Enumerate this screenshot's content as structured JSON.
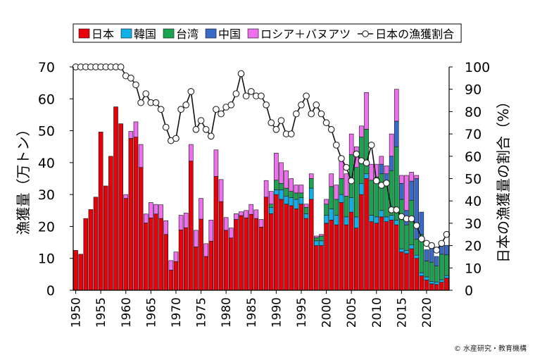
{
  "chart_data": {
    "type": "bar",
    "stacked": true,
    "x_label": "",
    "y_label_left": "漁獲量（万トン）",
    "y_label_right": "日本の漁獲量の割合（%）",
    "ylim_left": [
      0,
      70
    ],
    "ylim_right": [
      0,
      100
    ],
    "y_ticks_left": [
      0,
      10,
      20,
      30,
      40,
      50,
      60,
      70
    ],
    "y_ticks_right": [
      0,
      10,
      20,
      30,
      40,
      50,
      60,
      70,
      80,
      90,
      100
    ],
    "x_ticks": [
      1950,
      1955,
      1960,
      1965,
      1970,
      1975,
      1980,
      1985,
      1990,
      1995,
      2000,
      2005,
      2010,
      2015,
      2020
    ],
    "legend_position": "top",
    "grid": false,
    "years": [
      1950,
      1951,
      1952,
      1953,
      1954,
      1955,
      1956,
      1957,
      1958,
      1959,
      1960,
      1961,
      1962,
      1963,
      1964,
      1965,
      1966,
      1967,
      1968,
      1969,
      1970,
      1971,
      1972,
      1973,
      1974,
      1975,
      1976,
      1977,
      1978,
      1979,
      1980,
      1981,
      1982,
      1983,
      1984,
      1985,
      1986,
      1987,
      1988,
      1989,
      1990,
      1991,
      1992,
      1993,
      1994,
      1995,
      1996,
      1997,
      1998,
      1999,
      2000,
      2001,
      2002,
      2003,
      2004,
      2005,
      2006,
      2007,
      2008,
      2009,
      2010,
      2011,
      2012,
      2013,
      2014,
      2015,
      2016,
      2017,
      2018,
      2019,
      2020,
      2021,
      2022,
      2023,
      2024
    ],
    "series": [
      {
        "name": "日本",
        "color": "#e8000b",
        "role": "bar",
        "values": [
          12.5,
          11.3,
          22.5,
          25.3,
          29.2,
          49.6,
          32.7,
          42.0,
          57.5,
          52.2,
          28.8,
          47.6,
          48.0,
          38.5,
          21.1,
          22.7,
          23.9,
          22.5,
          17.5,
          6.3,
          9.0,
          18.9,
          19.6,
          40.5,
          13.6,
          22.3,
          10.6,
          15.4,
          35.7,
          27.8,
          18.8,
          16.4,
          22.2,
          23.4,
          22.7,
          23.8,
          22.5,
          19.8,
          29.2,
          24.0,
          30.0,
          28.5,
          27.0,
          26.5,
          25.5,
          27.0,
          22.5,
          28.5,
          14.0,
          14.0,
          21.0,
          22.0,
          20.5,
          27.5,
          20.5,
          24.5,
          19.5,
          30.0,
          35.0,
          21.5,
          21.0,
          23.0,
          21.5,
          22.0,
          20.5,
          12.0,
          11.5,
          13.0,
          10.0,
          4.5,
          3.2,
          2.0,
          1.8,
          2.5,
          3.8
        ]
      },
      {
        "name": "韓国",
        "color": "#10b0e8",
        "role": "bar",
        "values": [
          0,
          0,
          0,
          0,
          0,
          0,
          0,
          0,
          0,
          0,
          0,
          0,
          0,
          0,
          0,
          0,
          0,
          0,
          0,
          0,
          0,
          0,
          0,
          0,
          0,
          0,
          0,
          0,
          0,
          0,
          0,
          0,
          0,
          0,
          0,
          0,
          0,
          0,
          0,
          2.0,
          1.5,
          3.0,
          2.5,
          2.5,
          3.0,
          2.0,
          1.5,
          3.5,
          1.5,
          1.5,
          2.5,
          3.5,
          3.0,
          2.5,
          2.5,
          4.5,
          3.5,
          3.5,
          1.5,
          2.0,
          2.0,
          2.0,
          1.5,
          1.5,
          1.5,
          1.0,
          1.0,
          1.2,
          1.0,
          1.0,
          1.0,
          0.8,
          0.8,
          0.8,
          0.8
        ]
      },
      {
        "name": "台湾",
        "color": "#1aa350",
        "role": "bar",
        "values": [
          0,
          0,
          0,
          0,
          0,
          0,
          0,
          0,
          0,
          0,
          0,
          0,
          0,
          0,
          0,
          0,
          0,
          0,
          0,
          0,
          0,
          0,
          0,
          0,
          0,
          0,
          0,
          0,
          0,
          0,
          0,
          0,
          0,
          0,
          0,
          0,
          0,
          0,
          0,
          1.0,
          3.0,
          2.0,
          2.5,
          2.0,
          2.0,
          1.5,
          2.0,
          3.0,
          1.0,
          1.5,
          3.5,
          7.0,
          5.0,
          5.0,
          6.5,
          13.5,
          15.5,
          14.5,
          14.0,
          11.0,
          12.5,
          11.5,
          10.0,
          14.0,
          23.0,
          15.5,
          8.0,
          14.0,
          5.0,
          12.0,
          5.0,
          6.0,
          5.0,
          8.0,
          6.5
        ]
      },
      {
        "name": "中国",
        "color": "#3a6ac8",
        "role": "bar",
        "values": [
          0,
          0,
          0,
          0,
          0,
          0,
          0,
          0,
          0,
          0,
          0,
          0,
          0,
          0,
          0,
          0,
          0,
          0,
          0,
          0,
          0,
          0,
          0,
          0,
          0,
          0,
          0,
          0,
          0,
          0,
          0,
          0,
          0,
          0,
          0,
          0,
          0,
          0,
          0,
          0,
          0,
          0,
          0,
          0,
          0,
          0,
          0,
          0,
          0,
          0,
          0,
          0,
          0,
          0,
          0,
          0,
          0,
          0,
          0,
          0,
          0,
          3.0,
          3.5,
          4.5,
          8.0,
          5.0,
          4.5,
          6.0,
          19.0,
          7.0,
          3.5,
          4.5,
          3.0,
          3.5,
          3.0
        ]
      },
      {
        "name": "ロシア＋バヌアツ",
        "color": "#ee70ee",
        "role": "bar",
        "values": [
          0,
          0,
          0,
          0,
          0,
          0,
          0,
          0,
          0,
          0,
          1.2,
          2.2,
          4.8,
          7.2,
          2.8,
          4.8,
          3.0,
          4.3,
          4.3,
          3.0,
          3.0,
          4.6,
          4.6,
          5.2,
          5.2,
          6.5,
          4.0,
          6.6,
          8.3,
          6.9,
          4.0,
          3.1,
          1.8,
          1.2,
          2.3,
          3.1,
          2.7,
          2.4,
          5.2,
          4.0,
          8.5,
          6.5,
          5.5,
          4.0,
          2.5,
          2.5,
          1.0,
          1.5,
          0.5,
          0.5,
          1.5,
          4.0,
          4.5,
          6.0,
          7.0,
          6.5,
          6.5,
          3.5,
          11.5,
          5.0,
          4.0,
          2.5,
          2.5,
          7.0,
          10.0,
          2.5,
          11.0,
          2.8,
          1.0,
          0,
          0,
          0,
          0,
          0,
          0
        ]
      },
      {
        "name": "日本の漁獲割合",
        "color": "#111111",
        "role": "line_right_axis",
        "marker": "open-circle",
        "values": [
          100,
          100,
          100,
          100,
          100,
          100,
          100,
          100,
          100,
          100,
          96,
          95,
          92,
          84,
          88,
          84,
          84,
          81,
          73,
          67,
          68,
          81,
          83,
          89,
          72,
          76,
          72,
          69,
          81,
          79,
          82,
          83,
          88,
          97,
          87,
          89,
          87,
          87,
          83,
          75,
          72,
          76,
          70,
          70,
          79,
          83,
          87,
          79,
          83,
          79,
          75,
          72,
          65,
          59,
          55,
          49,
          61,
          58,
          57,
          65,
          49,
          47,
          48,
          36,
          36,
          33,
          32,
          32,
          29,
          23,
          21,
          20,
          18,
          21,
          25
        ]
      }
    ]
  },
  "credit": "© 水産研究・教育機構"
}
